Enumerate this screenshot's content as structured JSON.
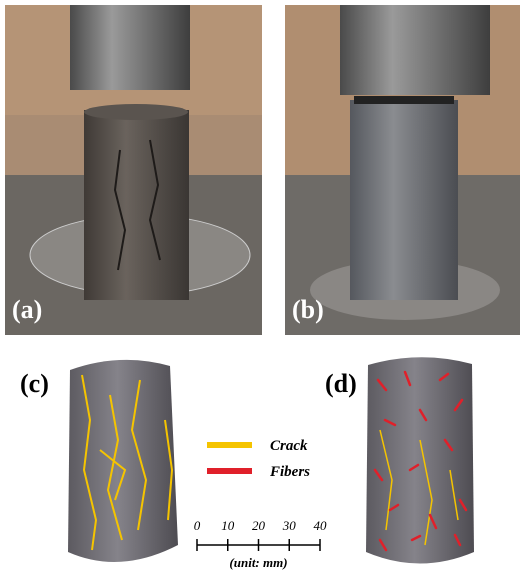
{
  "panels": [
    {
      "label": "(a)"
    },
    {
      "label": "(b)"
    },
    {
      "label": "(c)"
    },
    {
      "label": "(d)"
    }
  ],
  "legend": [
    {
      "label": "Crack",
      "color": "#f5c400"
    },
    {
      "label": "Fibers",
      "color": "#e0202a"
    }
  ],
  "scale": {
    "ticks": [
      0,
      10,
      20,
      30,
      40
    ],
    "unit": "(unit: mm)"
  }
}
